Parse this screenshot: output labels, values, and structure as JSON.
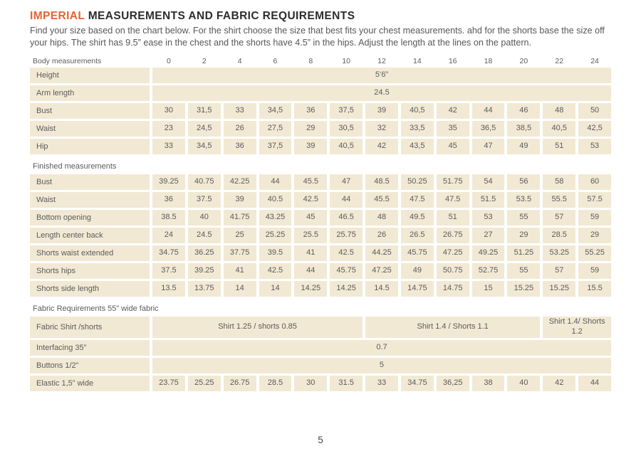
{
  "page": {
    "title_highlight": "IMPERIAL",
    "title_rest": " MEASUREMENTS AND FABRIC REQUIREMENTS",
    "intro": "Find your size based on the chart below. For the shirt choose the size that best fits your chest measurements.  ahd for the shorts base the size off your hips. The shirt  has 9.5” ease in the chest and the shorts have 4.5” in the hips. Adjust the length at the lines on the pattern.",
    "page_number": "5"
  },
  "colors": {
    "accent_orange": "#e8632f",
    "cell_beige": "#f2e9d4",
    "text_gray": "#57575a"
  },
  "table": {
    "sizes_header_label": "Body measurements",
    "sizes": [
      "0",
      "2",
      "4",
      "6",
      "8",
      "10",
      "12",
      "14",
      "16",
      "18",
      "20",
      "22",
      "24"
    ],
    "rows": [
      {
        "type": "merged",
        "label": "Height",
        "value": "5’6”"
      },
      {
        "type": "merged",
        "label": "Arm length",
        "value": "24.5"
      },
      {
        "type": "values",
        "label": "Bust",
        "values": [
          "30",
          "31,5",
          "33",
          "34,5",
          "36",
          "37,5",
          "39",
          "40,5",
          "42",
          "44",
          "46",
          "48",
          "50"
        ]
      },
      {
        "type": "values",
        "label": "Waist",
        "values": [
          "23",
          "24,5",
          "26",
          "27,5",
          "29",
          "30,5",
          "32",
          "33,5",
          "35",
          "36,5",
          "38,5",
          "40,5",
          "42,5"
        ]
      },
      {
        "type": "values",
        "label": "Hip",
        "values": [
          "33",
          "34,5",
          "36",
          "37,5",
          "39",
          "40,5",
          "42",
          "43,5",
          "45",
          "47",
          "49",
          "51",
          "53"
        ]
      },
      {
        "type": "section",
        "label": "Finished measurements"
      },
      {
        "type": "values",
        "label": "Bust",
        "values": [
          "39.25",
          "40.75",
          "42.25",
          "44",
          "45.5",
          "47",
          "48.5",
          "50.25",
          "51.75",
          "54",
          "56",
          "58",
          "60"
        ]
      },
      {
        "type": "values",
        "label": "Waist",
        "values": [
          "36",
          "37.5",
          "39",
          "40.5",
          "42.5",
          "44",
          "45.5",
          "47.5",
          "47.5",
          "51.5",
          "53.5",
          "55.5",
          "57.5"
        ]
      },
      {
        "type": "values",
        "label": "Bottom opening",
        "values": [
          "38.5",
          "40",
          "41.75",
          "43.25",
          "45",
          "46.5",
          "48",
          "49.5",
          "51",
          "53",
          "55",
          "57",
          "59"
        ]
      },
      {
        "type": "values",
        "label": "Length center back",
        "values": [
          "24",
          "24.5",
          "25",
          "25.25",
          "25.5",
          "25.75",
          "26",
          "26.5",
          "26.75",
          "27",
          "29",
          "28.5",
          "29"
        ]
      },
      {
        "type": "values",
        "label": "Shorts waist extended",
        "values": [
          "34.75",
          "36.25",
          "37.75",
          "39.5",
          "41",
          "42.5",
          "44.25",
          "45.75",
          "47.25",
          "49.25",
          "51.25",
          "53.25",
          "55.25"
        ]
      },
      {
        "type": "values",
        "label": "Shorts hips",
        "values": [
          "37.5",
          "39.25",
          "41",
          "42.5",
          "44",
          "45.75",
          "47.25",
          "49",
          "50.75",
          "52.75",
          "55",
          "57",
          "59"
        ]
      },
      {
        "type": "values",
        "label": "Shorts side length",
        "values": [
          "13.5",
          "13.75",
          "14",
          "14",
          "14.25",
          "14.25",
          "14.5",
          "14.75",
          "14.75",
          "15",
          "15.25",
          "15.25",
          "15.5"
        ]
      },
      {
        "type": "section",
        "label": "Fabric Requirements 55” wide fabric"
      },
      {
        "type": "spans",
        "label": "Fabric Shirt /shorts",
        "spans": [
          {
            "value": "Shirt 1.25 / shorts 0.85",
            "cols": 6
          },
          {
            "value": "Shirt 1.4 /  Shorts 1.1",
            "cols": 5
          },
          {
            "value": "Shirt 1.4/ Shorts 1.2",
            "cols": 2
          }
        ]
      },
      {
        "type": "merged",
        "label": "Interfacing 35”",
        "value": "0.7"
      },
      {
        "type": "merged",
        "label": "Buttons 1/2”",
        "value": "5"
      },
      {
        "type": "values",
        "label": "Elastic 1,5” wide",
        "values": [
          "23.75",
          "25.25",
          "26.75",
          "28.5",
          "30",
          "31.5",
          "33",
          "34.75",
          "36,25",
          "38",
          "40",
          "42",
          "44"
        ]
      }
    ]
  }
}
